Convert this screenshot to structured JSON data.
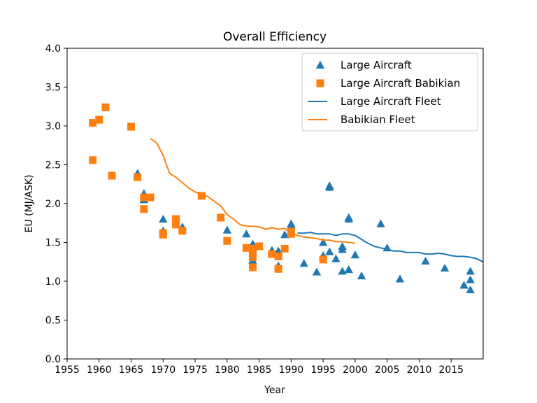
{
  "chart_data": {
    "type": "scatter",
    "title": "Overall Efficiency",
    "xlabel": "Year",
    "ylabel": "EU (MJ/ASK)",
    "xlim": [
      1955,
      2020
    ],
    "ylim": [
      0.0,
      4.0
    ],
    "xticks": [
      1955,
      1960,
      1965,
      1970,
      1975,
      1980,
      1985,
      1990,
      1995,
      2000,
      2005,
      2010,
      2015
    ],
    "yticks": [
      "0.0",
      "0.5",
      "1.0",
      "1.5",
      "2.0",
      "2.5",
      "3.0",
      "3.5",
      "4.0"
    ],
    "grid": false,
    "legend_position": "top-right",
    "colors": {
      "blue": "#1f77b4",
      "orange": "#ff7f0e"
    },
    "series": [
      {
        "name": "Large Aircraft",
        "kind": "scatter",
        "marker": "triangle",
        "color": "#1f77b4",
        "points": [
          [
            1966,
            2.39
          ],
          [
            1967,
            2.13
          ],
          [
            1967,
            2.05
          ],
          [
            1970,
            1.8
          ],
          [
            1970,
            1.65
          ],
          [
            1973,
            1.7
          ],
          [
            1980,
            1.66
          ],
          [
            1983,
            1.61
          ],
          [
            1984,
            1.48
          ],
          [
            1984,
            1.27
          ],
          [
            1985,
            1.45
          ],
          [
            1987,
            1.4
          ],
          [
            1988,
            1.39
          ],
          [
            1988,
            1.2
          ],
          [
            1989,
            1.6
          ],
          [
            1990,
            1.74
          ],
          [
            1990,
            1.72
          ],
          [
            1992,
            1.23
          ],
          [
            1994,
            1.12
          ],
          [
            1995,
            1.5
          ],
          [
            1995,
            1.33
          ],
          [
            1996,
            2.23
          ],
          [
            1996,
            2.21
          ],
          [
            1996,
            1.38
          ],
          [
            1997,
            1.29
          ],
          [
            1998,
            1.45
          ],
          [
            1998,
            1.41
          ],
          [
            1998,
            1.13
          ],
          [
            1999,
            1.82
          ],
          [
            1999,
            1.8
          ],
          [
            1999,
            1.15
          ],
          [
            2000,
            1.34
          ],
          [
            2001,
            1.07
          ],
          [
            2004,
            1.74
          ],
          [
            2005,
            1.43
          ],
          [
            2007,
            1.03
          ],
          [
            2011,
            1.26
          ],
          [
            2014,
            1.17
          ],
          [
            2017,
            0.95
          ],
          [
            2018,
            1.13
          ],
          [
            2018,
            1.02
          ],
          [
            2018,
            0.89
          ]
        ]
      },
      {
        "name": "Large Aircraft Babikian",
        "kind": "scatter",
        "marker": "square",
        "color": "#ff7f0e",
        "points": [
          [
            1959,
            3.04
          ],
          [
            1959,
            2.56
          ],
          [
            1960,
            3.08
          ],
          [
            1961,
            3.24
          ],
          [
            1962,
            2.36
          ],
          [
            1965,
            2.99
          ],
          [
            1966,
            2.34
          ],
          [
            1967,
            2.08
          ],
          [
            1967,
            1.93
          ],
          [
            1968,
            2.08
          ],
          [
            1970,
            1.62
          ],
          [
            1970,
            1.6
          ],
          [
            1972,
            1.8
          ],
          [
            1972,
            1.73
          ],
          [
            1973,
            1.65
          ],
          [
            1976,
            2.1
          ],
          [
            1979,
            1.82
          ],
          [
            1980,
            1.52
          ],
          [
            1983,
            1.43
          ],
          [
            1984,
            1.42
          ],
          [
            1984,
            1.36
          ],
          [
            1984,
            1.31
          ],
          [
            1984,
            1.18
          ],
          [
            1985,
            1.45
          ],
          [
            1987,
            1.35
          ],
          [
            1988,
            1.32
          ],
          [
            1988,
            1.16
          ],
          [
            1989,
            1.42
          ],
          [
            1990,
            1.64
          ],
          [
            1990,
            1.61
          ],
          [
            1995,
            1.28
          ]
        ]
      },
      {
        "name": "Large Aircraft Fleet",
        "kind": "line",
        "color": "#1f77b4",
        "points": [
          [
            1991,
            1.62
          ],
          [
            1992,
            1.62
          ],
          [
            1993,
            1.63
          ],
          [
            1994,
            1.61
          ],
          [
            1995,
            1.61
          ],
          [
            1996,
            1.61
          ],
          [
            1997,
            1.59
          ],
          [
            1998,
            1.61
          ],
          [
            1999,
            1.61
          ],
          [
            2000,
            1.59
          ],
          [
            2001,
            1.54
          ],
          [
            2002,
            1.49
          ],
          [
            2003,
            1.45
          ],
          [
            2004,
            1.43
          ],
          [
            2005,
            1.41
          ],
          [
            2006,
            1.39
          ],
          [
            2007,
            1.39
          ],
          [
            2008,
            1.37
          ],
          [
            2009,
            1.37
          ],
          [
            2010,
            1.37
          ],
          [
            2011,
            1.35
          ],
          [
            2012,
            1.35
          ],
          [
            2013,
            1.36
          ],
          [
            2014,
            1.35
          ],
          [
            2015,
            1.33
          ],
          [
            2016,
            1.32
          ],
          [
            2017,
            1.32
          ],
          [
            2018,
            1.31
          ],
          [
            2019,
            1.29
          ],
          [
            2020,
            1.25
          ]
        ]
      },
      {
        "name": "Babikian Fleet",
        "kind": "line",
        "color": "#ff7f0e",
        "points": [
          [
            1968,
            2.84
          ],
          [
            1969,
            2.78
          ],
          [
            1970,
            2.62
          ],
          [
            1971,
            2.39
          ],
          [
            1972,
            2.34
          ],
          [
            1973,
            2.27
          ],
          [
            1974,
            2.2
          ],
          [
            1975,
            2.15
          ],
          [
            1976,
            2.12
          ],
          [
            1977,
            2.09
          ],
          [
            1978,
            2.03
          ],
          [
            1979,
            1.97
          ],
          [
            1980,
            1.86
          ],
          [
            1981,
            1.8
          ],
          [
            1982,
            1.73
          ],
          [
            1983,
            1.71
          ],
          [
            1984,
            1.71
          ],
          [
            1985,
            1.7
          ],
          [
            1986,
            1.67
          ],
          [
            1987,
            1.69
          ],
          [
            1988,
            1.67
          ],
          [
            1989,
            1.68
          ],
          [
            1990,
            1.62
          ],
          [
            1991,
            1.59
          ],
          [
            1992,
            1.57
          ],
          [
            1993,
            1.56
          ],
          [
            1994,
            1.55
          ],
          [
            1995,
            1.53
          ],
          [
            1996,
            1.53
          ],
          [
            1997,
            1.51
          ],
          [
            1998,
            1.51
          ],
          [
            1999,
            1.5
          ],
          [
            2000,
            1.49
          ]
        ]
      }
    ]
  }
}
